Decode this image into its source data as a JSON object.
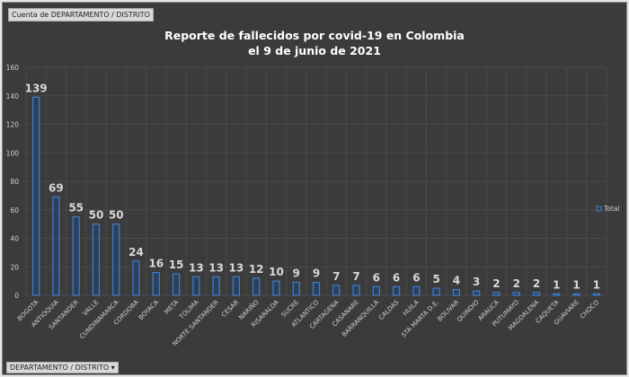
{
  "field_button": "Cuenta de DEPARTAMENTO / DISTRITO",
  "axis_field_button": "DEPARTAMENTO / DISTRITO",
  "colors": {
    "bar": "#3d7fd1",
    "background": "#3b3b3b",
    "text": "#d0d0d0"
  },
  "chart_data": {
    "type": "bar",
    "title": "Reporte de fallecidos por covid-19 en Colombia",
    "subtitle": "el 9 de junio de 2021",
    "categories": [
      "BOGOTA",
      "ANTIOQUIA",
      "SANTANDER",
      "VALLE",
      "CUNDINAMARCA",
      "CORDOBA",
      "BOYACA",
      "META",
      "TOLIMA",
      "NORTE SANTANDER",
      "CESAR",
      "NARIÑO",
      "RISARALDA",
      "SUCRE",
      "ATLANTICO",
      "CARTAGENA",
      "CASANARE",
      "BARRANQUILLA",
      "CALDAS",
      "HUILA",
      "STA MARTA D.E.",
      "BOLIVAR",
      "QUINDIO",
      "ARAUCA",
      "PUTUMAYO",
      "MAGDALENA",
      "CAQUETA",
      "GUAVIARE",
      "CHOCO"
    ],
    "series": [
      {
        "name": "Total",
        "values": [
          139,
          69,
          55,
          50,
          50,
          24,
          16,
          15,
          13,
          13,
          13,
          12,
          10,
          9,
          9,
          7,
          7,
          6,
          6,
          6,
          5,
          4,
          3,
          2,
          2,
          2,
          1,
          1,
          1
        ]
      }
    ],
    "yticks": [
      "0",
      "20",
      "40",
      "60",
      "80",
      "100",
      "120",
      "140",
      "160"
    ],
    "ylim": [
      0,
      160
    ],
    "grid": true,
    "legend": "right"
  }
}
